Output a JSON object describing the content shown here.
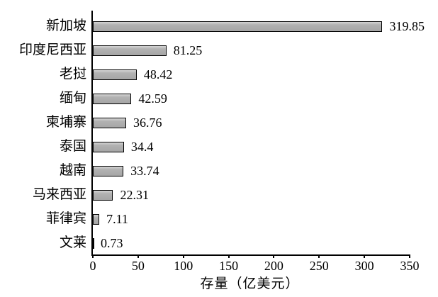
{
  "chart_data": {
    "type": "bar",
    "orientation": "horizontal",
    "categories": [
      "新加坡",
      "印度尼西亚",
      "老挝",
      "缅甸",
      "柬埔寨",
      "泰国",
      "越南",
      "马来西亚",
      "菲律宾",
      "文莱"
    ],
    "values": [
      319.85,
      81.25,
      48.42,
      42.59,
      36.76,
      34.4,
      33.74,
      22.31,
      7.11,
      0.73
    ],
    "value_labels": [
      "319.85",
      "81.25",
      "48.42",
      "42.59",
      "36.76",
      "34.4",
      "33.74",
      "22.31",
      "7.11",
      "0.73"
    ],
    "title": "",
    "xlabel": "存量（亿美元）",
    "ylabel": "",
    "xlim": [
      0,
      350
    ],
    "xticks": [
      0,
      50,
      100,
      150,
      200,
      250,
      300,
      350
    ],
    "grid": "off",
    "legend": "none",
    "bar_color": "#b2b2b2",
    "bar_border_color": "#000000",
    "axis_color": "#000000",
    "background_color": "#ffffff"
  }
}
